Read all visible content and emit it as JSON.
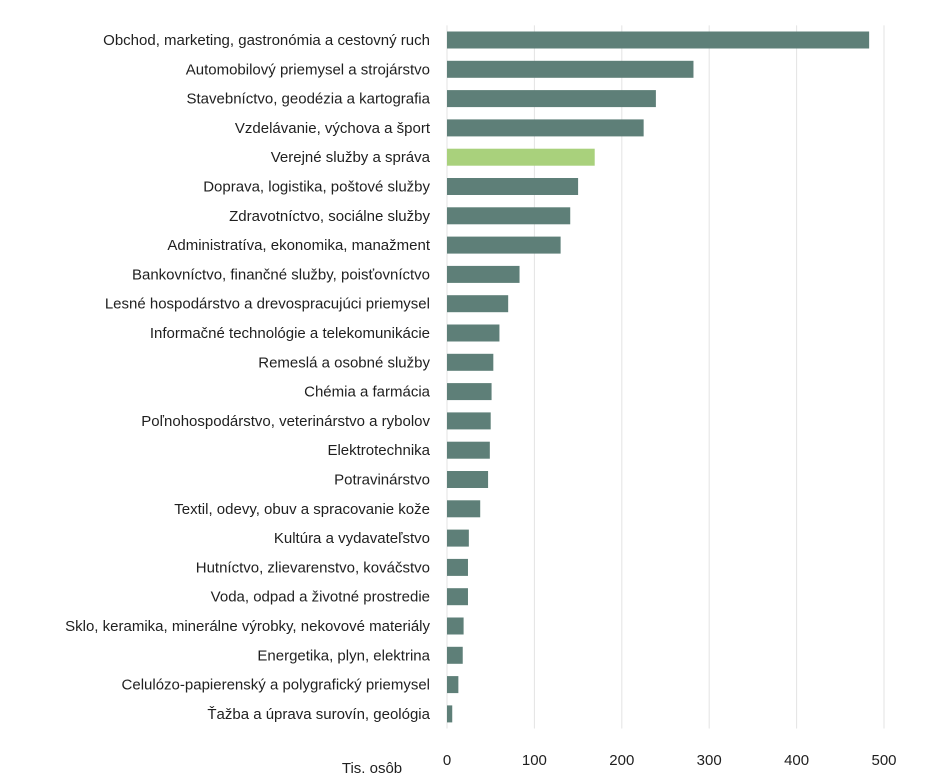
{
  "chart_data": {
    "type": "bar",
    "orientation": "horizontal",
    "title": "",
    "xlabel": "Tis. osôb",
    "ylabel": "",
    "xlim": [
      0,
      500
    ],
    "xticks": [
      0,
      100,
      200,
      300,
      400,
      500
    ],
    "grid": true,
    "legend": "none",
    "colors": {
      "default": "#5e7f78",
      "highlight": "#a9d17c"
    },
    "highlight_category": "Verejné služby a správa",
    "categories": [
      "Obchod, marketing, gastronómia a cestovný ruch",
      "Automobilový priemysel a strojárstvo",
      "Stavebníctvo, geodézia a kartografia",
      "Vzdelávanie, výchova a šport",
      "Verejné služby a správa",
      "Doprava, logistika, poštové služby",
      "Zdravotníctvo, sociálne služby",
      "Administratíva, ekonomika, manažment",
      "Bankovníctvo, finančné služby, poisťovníctvo",
      "Lesné hospodárstvo a drevospracujúci priemysel",
      "Informačné technológie a telekomunikácie",
      "Remeslá a osobné služby",
      "Chémia a farmácia",
      "Poľnohospodárstvo, veterinárstvo a rybolov",
      "Elektrotechnika",
      "Potravinárstvo",
      "Textil, odevy, obuv a spracovanie kože",
      "Kultúra a vydavateľstvo",
      "Hutníctvo, zlievarenstvo, kováčstvo",
      "Voda, odpad a životné prostredie",
      "Sklo, keramika, minerálne výrobky, nekovové materiály",
      "Energetika, plyn, elektrina",
      "Celulózo-papierenský a polygrafický priemysel",
      "Ťažba a úprava surovín, geológia"
    ],
    "values": [
      483,
      282,
      239,
      225,
      169,
      150,
      141,
      130,
      83,
      70,
      60,
      53,
      51,
      50,
      49,
      47,
      38,
      25,
      24,
      24,
      19,
      18,
      13,
      6
    ]
  }
}
